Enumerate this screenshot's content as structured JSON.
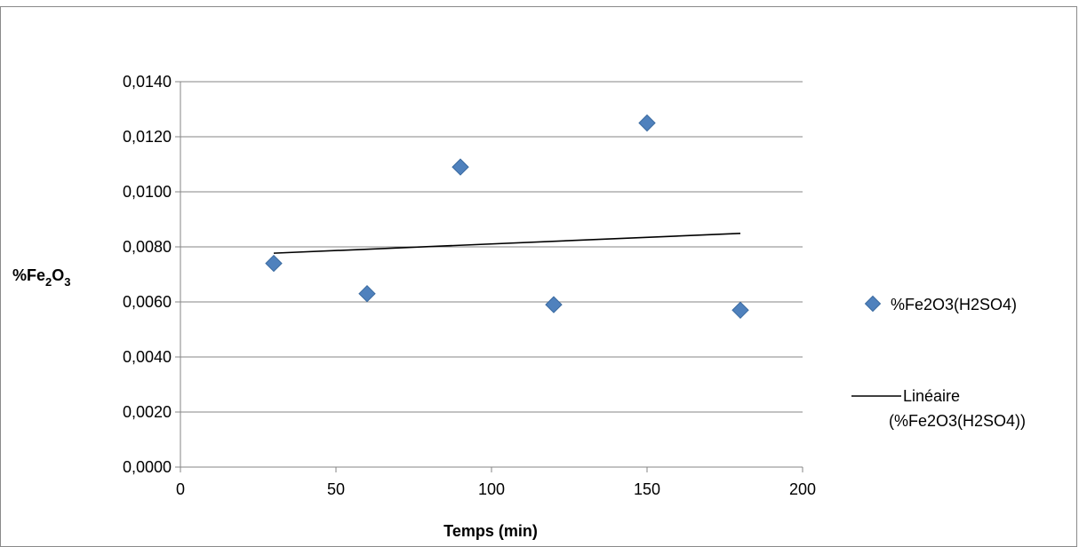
{
  "chart_data": {
    "type": "scatter",
    "title": "",
    "xlabel": "Temps (min)",
    "ylabel_main": "%Fe",
    "ylabel_sub1": "2",
    "ylabel_mid": "O",
    "ylabel_sub2": "3",
    "xlim": [
      0,
      200
    ],
    "ylim": [
      0,
      0.014
    ],
    "x_ticks": [
      0,
      50,
      100,
      150,
      200
    ],
    "x_tick_labels": [
      "0",
      "50",
      "100",
      "150",
      "200"
    ],
    "y_ticks": [
      0,
      0.002,
      0.004,
      0.006,
      0.008,
      0.01,
      0.012,
      0.014
    ],
    "y_tick_labels": [
      "0,0000",
      "0,0020",
      "0,0040",
      "0,0060",
      "0,0080",
      "0,0100",
      "0,0120",
      "0,0140"
    ],
    "grid": "horizontal",
    "legend_position": "right",
    "series": [
      {
        "name": "%Fe2O3(H2SO4)",
        "marker": "diamond",
        "color": "#4f81bd",
        "x": [
          30,
          60,
          90,
          120,
          150,
          180
        ],
        "y": [
          0.0074,
          0.0063,
          0.0109,
          0.0059,
          0.0125,
          0.0057
        ]
      }
    ],
    "trendline": {
      "type": "linear",
      "color": "#000000",
      "x": [
        30,
        180
      ],
      "y": [
        0.00777,
        0.00849
      ]
    },
    "legend": {
      "series_label": "%Fe2O3(H2SO4)",
      "trend_label_line1": "Linéaire",
      "trend_label_line2": "(%Fe2O3(H2SO4))"
    }
  }
}
